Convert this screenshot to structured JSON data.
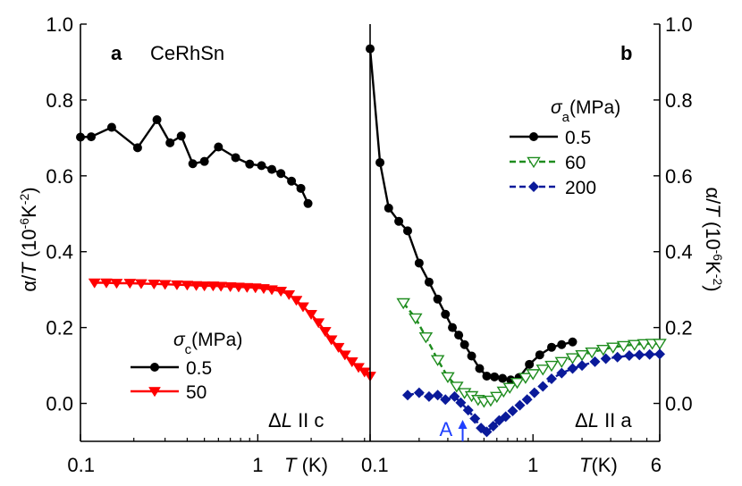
{
  "chart_data": [
    {
      "panel": "a",
      "panel_label": "a",
      "type": "line",
      "annotation_title": "CeRhSn",
      "annotation_direction": "ΔL II c",
      "xscale": "log",
      "xlim": [
        0.1,
        4.3
      ],
      "ylim": [
        -0.1,
        1.0
      ],
      "xticks": [
        {
          "v": 0.1,
          "label": "0.1"
        },
        {
          "v": 1,
          "label": "1"
        }
      ],
      "yticks": [
        {
          "v": 0.0,
          "label": "0.0"
        },
        {
          "v": 0.2,
          "label": "0.2"
        },
        {
          "v": 0.4,
          "label": "0.4"
        },
        {
          "v": 0.6,
          "label": "0.6"
        },
        {
          "v": 0.8,
          "label": "0.8"
        },
        {
          "v": 1.0,
          "label": "1.0"
        }
      ],
      "xlabel": "T (K)",
      "ylabel": "α/T (10⁻⁶K⁻²)",
      "legend_title": "σc(MPa)",
      "legend_position": "bottom-left",
      "series": [
        {
          "name": "0.5",
          "color": "#000000",
          "marker": "circle",
          "x": [
            0.1,
            0.115,
            0.15,
            0.21,
            0.27,
            0.32,
            0.37,
            0.43,
            0.5,
            0.6,
            0.75,
            0.9,
            1.05,
            1.2,
            1.35,
            1.55,
            1.75,
            1.92
          ],
          "y": [
            0.702,
            0.703,
            0.728,
            0.674,
            0.748,
            0.687,
            0.705,
            0.632,
            0.638,
            0.676,
            0.648,
            0.631,
            0.627,
            0.617,
            0.606,
            0.586,
            0.567,
            0.527
          ]
        },
        {
          "name": "50",
          "color": "#ff0000",
          "marker": "triangle-down",
          "x": [
            0.12,
            0.14,
            0.16,
            0.19,
            0.22,
            0.26,
            0.3,
            0.35,
            0.4,
            0.45,
            0.5,
            0.56,
            0.62,
            0.7,
            0.78,
            0.87,
            0.97,
            1.08,
            1.2,
            1.35,
            1.5,
            1.65,
            1.8,
            2.0,
            2.2,
            2.4,
            2.6,
            2.85,
            3.1,
            3.4,
            3.7,
            4.0,
            4.3
          ],
          "y": [
            0.318,
            0.318,
            0.317,
            0.317,
            0.316,
            0.315,
            0.314,
            0.313,
            0.312,
            0.311,
            0.31,
            0.31,
            0.309,
            0.308,
            0.307,
            0.306,
            0.305,
            0.303,
            0.3,
            0.296,
            0.287,
            0.272,
            0.255,
            0.235,
            0.213,
            0.19,
            0.168,
            0.148,
            0.128,
            0.11,
            0.095,
            0.083,
            0.072
          ]
        }
      ]
    },
    {
      "panel": "b",
      "panel_label": "b",
      "type": "line",
      "annotation_direction": "ΔL II a",
      "xscale": "log",
      "xlim": [
        0.1,
        6
      ],
      "ylim": [
        -0.1,
        1.0
      ],
      "xticks": [
        {
          "v": 0.1,
          "label": "0.1"
        },
        {
          "v": 1,
          "label": "1"
        },
        {
          "v": 6,
          "label": "6"
        }
      ],
      "yticks": [
        {
          "v": 0.0,
          "label": "0.0"
        },
        {
          "v": 0.2,
          "label": "0.2"
        },
        {
          "v": 0.4,
          "label": "0.4"
        },
        {
          "v": 0.6,
          "label": "0.6"
        },
        {
          "v": 0.8,
          "label": "0.8"
        },
        {
          "v": 1.0,
          "label": "1.0"
        }
      ],
      "xlabel": "T(K)",
      "ylabel": "α/T (10⁻⁶K⁻²)",
      "legend_title": "σa(MPa)",
      "legend_position": "top-right",
      "arrow_label": "A",
      "arrow_x": 0.37,
      "arrow_color": "#1f3fff",
      "series": [
        {
          "name": "0.5",
          "color": "#000000",
          "marker": "circle",
          "x": [
            0.1,
            0.115,
            0.13,
            0.15,
            0.17,
            0.2,
            0.23,
            0.26,
            0.29,
            0.32,
            0.35,
            0.38,
            0.42,
            0.47,
            0.52,
            0.58,
            0.65,
            0.73,
            0.82,
            0.95,
            1.1,
            1.3,
            1.5,
            1.75
          ],
          "y": [
            0.935,
            0.635,
            0.515,
            0.48,
            0.455,
            0.37,
            0.32,
            0.275,
            0.235,
            0.2,
            0.18,
            0.155,
            0.125,
            0.092,
            0.072,
            0.07,
            0.066,
            0.062,
            0.068,
            0.103,
            0.128,
            0.148,
            0.155,
            0.162
          ]
        },
        {
          "name": "60",
          "color": "#1e8c1e",
          "marker": "triangle-down-open",
          "x": [
            0.16,
            0.19,
            0.22,
            0.26,
            0.3,
            0.34,
            0.38,
            0.42,
            0.46,
            0.5,
            0.55,
            0.6,
            0.66,
            0.72,
            0.8,
            0.9,
            1.0,
            1.15,
            1.3,
            1.5,
            1.75,
            2.0,
            2.3,
            2.7,
            3.1,
            3.6,
            4.2,
            4.8,
            5.4,
            6.0
          ],
          "y": [
            0.265,
            0.225,
            0.175,
            0.115,
            0.07,
            0.045,
            0.028,
            0.02,
            0.01,
            0.005,
            0.008,
            0.018,
            0.032,
            0.042,
            0.055,
            0.068,
            0.078,
            0.09,
            0.1,
            0.11,
            0.12,
            0.128,
            0.135,
            0.142,
            0.148,
            0.152,
            0.155,
            0.157,
            0.158,
            0.158
          ]
        },
        {
          "name": "200",
          "color": "#0a1a9a",
          "marker": "diamond",
          "x": [
            0.17,
            0.2,
            0.23,
            0.26,
            0.29,
            0.33,
            0.36,
            0.4,
            0.44,
            0.48,
            0.52,
            0.57,
            0.62,
            0.68,
            0.75,
            0.83,
            0.92,
            1.02,
            1.15,
            1.3,
            1.5,
            1.75,
            2.0,
            2.4,
            2.8,
            3.3,
            3.9,
            4.5,
            5.2,
            6.0
          ],
          "y": [
            0.022,
            0.028,
            0.018,
            0.022,
            0.01,
            0.018,
            0.002,
            -0.018,
            -0.04,
            -0.065,
            -0.075,
            -0.06,
            -0.045,
            -0.035,
            -0.02,
            -0.005,
            0.01,
            0.028,
            0.045,
            0.065,
            0.08,
            0.092,
            0.1,
            0.11,
            0.118,
            0.122,
            0.126,
            0.128,
            0.129,
            0.13
          ]
        }
      ]
    }
  ]
}
